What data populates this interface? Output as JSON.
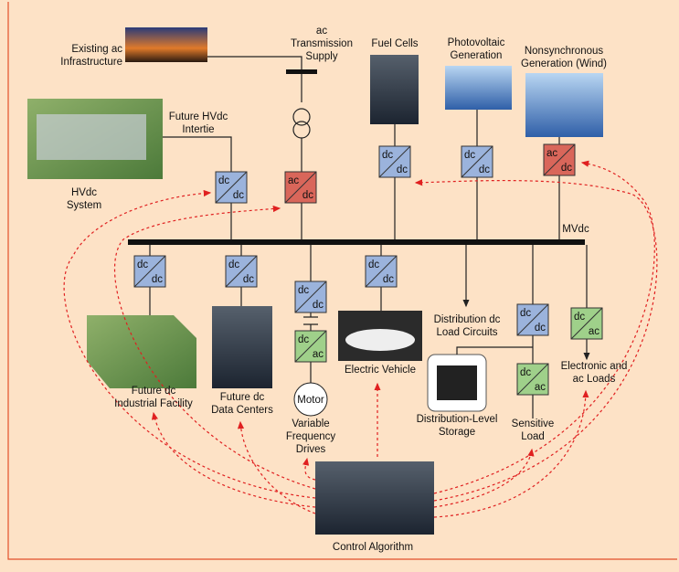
{
  "labels": {
    "existing_ac": [
      "Existing ac",
      "Infrastructure"
    ],
    "ac_supply": [
      "ac",
      "Transmission",
      "Supply"
    ],
    "fuel_cells": [
      "Fuel Cells"
    ],
    "pv": [
      "Photovoltaic",
      "Generation"
    ],
    "wind": [
      "Nonsynchronous",
      "Generation (Wind)"
    ],
    "hvdc_intertie": [
      "Future HVdc",
      "Intertie"
    ],
    "hvdc_system": [
      "HVdc",
      "System"
    ],
    "mvdc": [
      "MVdc"
    ],
    "industrial": [
      "Future dc",
      "Industrial Facility"
    ],
    "data_centers": [
      "Future dc",
      "Data Centers"
    ],
    "motor": [
      "Motor"
    ],
    "vfd": [
      "Variable",
      "Frequency",
      "Drives"
    ],
    "ev": [
      "Electric Vehicle"
    ],
    "load_circuits": [
      "Distribution dc",
      "Load Circuits"
    ],
    "storage": [
      "Distribution-Level",
      "Storage"
    ],
    "sensitive": [
      "Sensitive",
      "Load"
    ],
    "electronic": [
      "Electronic and",
      "ac Loads"
    ],
    "control": [
      "Control Algorithm"
    ]
  },
  "converters": [
    {
      "top": "dc",
      "bottom": "dc"
    },
    {
      "top": "ac",
      "bottom": "dc"
    },
    {
      "top": "dc",
      "bottom": "dc"
    },
    {
      "top": "dc",
      "bottom": "dc"
    },
    {
      "top": "ac",
      "bottom": "dc"
    },
    {
      "top": "dc",
      "bottom": "dc"
    },
    {
      "top": "dc",
      "bottom": "dc"
    },
    {
      "top": "dc",
      "bottom": "dc"
    },
    {
      "top": "dc",
      "bottom": "ac"
    },
    {
      "top": "dc",
      "bottom": "dc"
    },
    {
      "top": "dc",
      "bottom": "dc"
    },
    {
      "top": "dc",
      "bottom": "ac"
    },
    {
      "top": "dc",
      "bottom": "ac"
    }
  ]
}
